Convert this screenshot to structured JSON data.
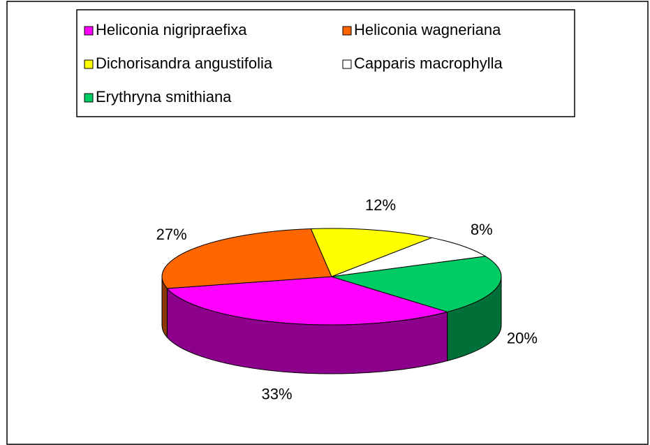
{
  "chart_data": {
    "type": "pie",
    "three_d": true,
    "legend": "top",
    "categories": [
      "Heliconia nigripraefixa",
      "Heliconia wagneriana",
      "Dichorisandra angustifolia",
      "Capparis macrophylla",
      "Erythryna smithiana"
    ],
    "values": [
      33,
      27,
      12,
      8,
      20
    ],
    "value_labels": [
      "33%",
      "27%",
      "12%",
      "8%",
      "20%"
    ],
    "colors": [
      "#ff00ff",
      "#ff6600",
      "#ffff00",
      "#ffffff",
      "#00cc66"
    ]
  }
}
